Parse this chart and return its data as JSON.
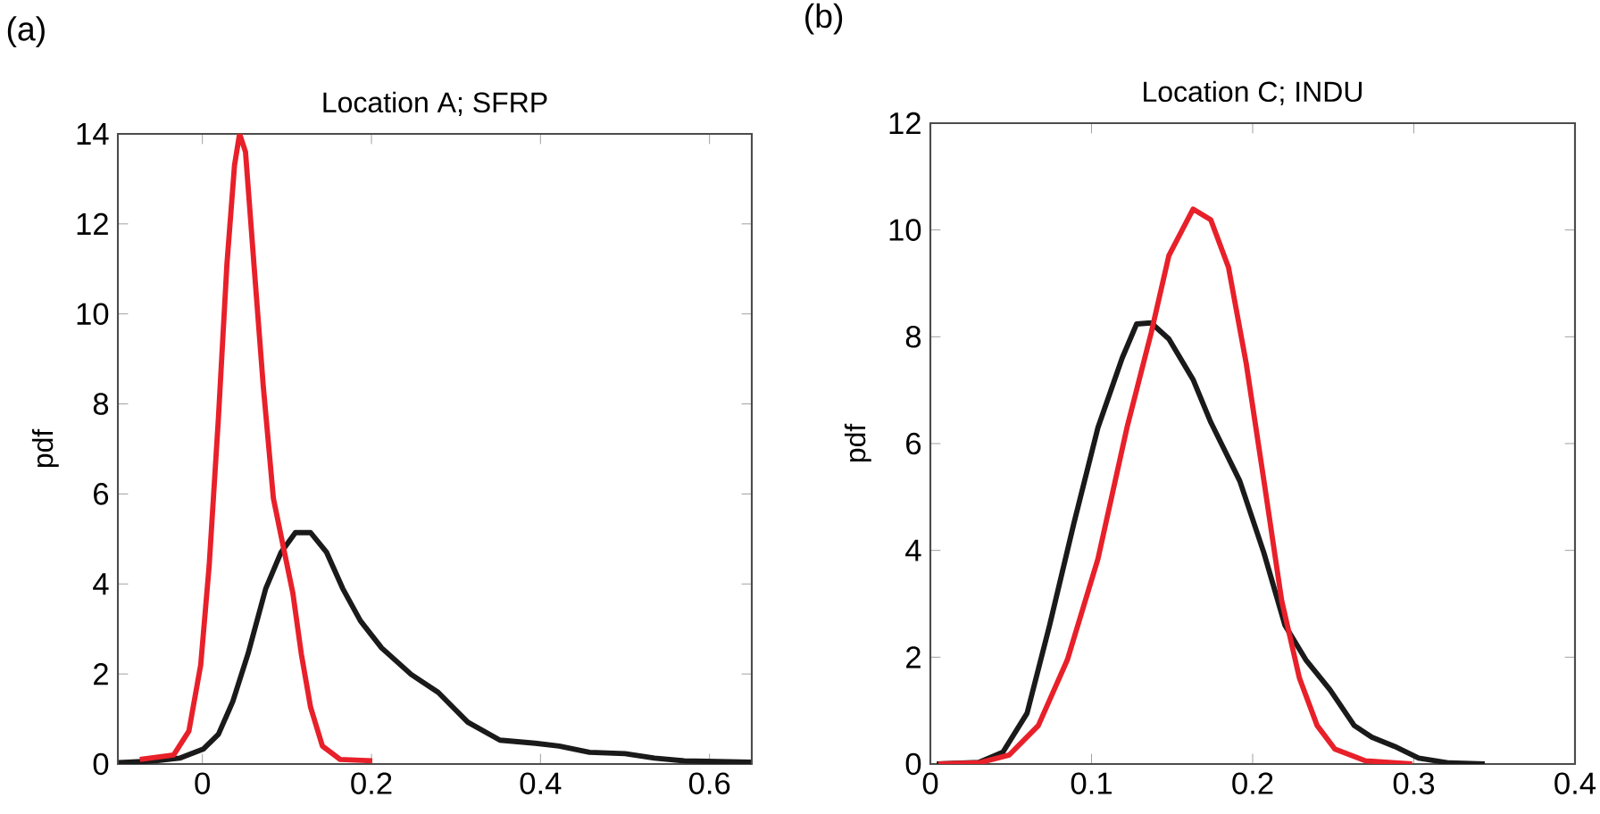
{
  "chart_data": [
    {
      "type": "line",
      "title": "Location A; SFRP",
      "ylabel": "pdf",
      "annotations": [
        "(a)"
      ],
      "xlim": [
        -0.1,
        0.65
      ],
      "ylim": [
        0,
        14
      ],
      "xticks": [
        0,
        0.2,
        0.4,
        0.6
      ],
      "yticks": [
        0,
        2,
        4,
        6,
        8,
        10,
        12,
        14
      ],
      "series": [
        {
          "color": "#1a1a1a",
          "x": [
            -0.099,
            -0.055,
            -0.027,
            0.001,
            0.019,
            0.036,
            0.054,
            0.075,
            0.093,
            0.11,
            0.128,
            0.147,
            0.166,
            0.187,
            0.212,
            0.247,
            0.279,
            0.314,
            0.352,
            0.394,
            0.422,
            0.458,
            0.5,
            0.535,
            0.57,
            0.649
          ],
          "values": [
            0.03,
            0.07,
            0.13,
            0.33,
            0.66,
            1.39,
            2.45,
            3.9,
            4.7,
            5.14,
            5.14,
            4.7,
            3.9,
            3.18,
            2.58,
            1.99,
            1.59,
            0.93,
            0.53,
            0.46,
            0.4,
            0.26,
            0.23,
            0.13,
            0.07,
            0.04
          ]
        },
        {
          "color": "#e8202a",
          "x": [
            -0.074,
            -0.034,
            -0.016,
            -0.002,
            0.008,
            0.019,
            0.029,
            0.038,
            0.044,
            0.051,
            0.061,
            0.072,
            0.084,
            0.096,
            0.107,
            0.117,
            0.128,
            0.142,
            0.163,
            0.201
          ],
          "values": [
            0.1,
            0.2,
            0.73,
            2.2,
            4.4,
            7.7,
            11.1,
            13.3,
            14.0,
            13.6,
            11.1,
            8.4,
            5.9,
            4.8,
            3.8,
            2.45,
            1.26,
            0.4,
            0.1,
            0.07
          ]
        }
      ]
    },
    {
      "type": "line",
      "title": "Location C; INDU",
      "ylabel": "pdf",
      "annotations": [
        "(b)"
      ],
      "xlim": [
        0,
        0.4
      ],
      "ylim": [
        0,
        12
      ],
      "xticks": [
        0,
        0.1,
        0.2,
        0.3,
        0.4
      ],
      "yticks": [
        0,
        2,
        4,
        6,
        8,
        10,
        12
      ],
      "series": [
        {
          "color": "#1a1a1a",
          "x": [
            0.004,
            0.03,
            0.045,
            0.06,
            0.074,
            0.089,
            0.104,
            0.119,
            0.128,
            0.137,
            0.148,
            0.163,
            0.174,
            0.192,
            0.207,
            0.22,
            0.233,
            0.248,
            0.263,
            0.274,
            0.288,
            0.303,
            0.322,
            0.344
          ],
          "values": [
            0,
            0.03,
            0.22,
            0.95,
            2.6,
            4.5,
            6.3,
            7.6,
            8.24,
            8.26,
            7.96,
            7.2,
            6.4,
            5.3,
            3.95,
            2.6,
            1.95,
            1.39,
            0.72,
            0.5,
            0.33,
            0.11,
            0.02,
            0
          ]
        },
        {
          "color": "#e8202a",
          "x": [
            0.005,
            0.03,
            0.049,
            0.067,
            0.085,
            0.104,
            0.122,
            0.137,
            0.148,
            0.163,
            0.174,
            0.185,
            0.196,
            0.207,
            0.218,
            0.229,
            0.24,
            0.251,
            0.27,
            0.299
          ],
          "values": [
            0,
            0.02,
            0.17,
            0.72,
            1.95,
            3.84,
            6.3,
            8.07,
            9.52,
            10.39,
            10.19,
            9.3,
            7.5,
            5.3,
            3.06,
            1.61,
            0.72,
            0.28,
            0.06,
            0
          ]
        }
      ]
    }
  ]
}
